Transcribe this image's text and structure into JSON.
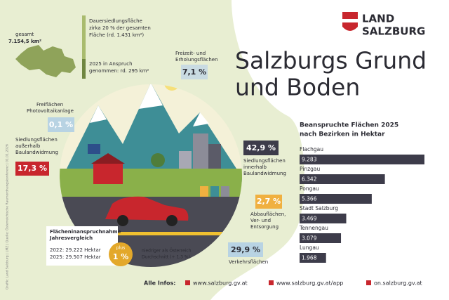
{
  "header": {
    "title_lines": [
      "Salzburgs Grund",
      "und Boden"
    ],
    "logo": [
      "LAND",
      "SALZBURG"
    ]
  },
  "overview": {
    "total_label": "gesamt",
    "total": "7.154,5 km²",
    "settlement": [
      "Dauersiedlungsfläche",
      "zirka 20 % der gesamten",
      "Fläche (rd. 1.431 km²)"
    ],
    "claimed": [
      "2025 in Anspruch",
      "genommen: rd. 295 km²"
    ]
  },
  "shares": [
    {
      "value": "7,1 %",
      "label": [
        "Freizeit- und",
        "Erholungsflächen"
      ]
    },
    {
      "value": "0,1 %",
      "label": [
        "Freiflächen",
        "Photovoltaikanlage"
      ]
    },
    {
      "value": "17,3 %",
      "label": [
        "Siedlungsflächen",
        "außerhalb",
        "Baulandwidmung"
      ]
    },
    {
      "value": "42,9 %",
      "label": [
        "Siedlungsflächen",
        "innerhalb",
        "Baulandwidmung"
      ]
    },
    {
      "value": "2,7 %",
      "label": [
        "Abbauflächen,",
        "Ver- und",
        "Entsorgung"
      ]
    },
    {
      "value": "29,9 %",
      "label": [
        "Verkehrsflächen"
      ]
    }
  ],
  "comparison": {
    "title": [
      "Flächeninanspruchnahme",
      "Jahresvergleich"
    ],
    "rows": [
      "2022: 29.222 Hektar",
      "2025: 29.507 Hektar"
    ],
    "badge_top": "plus",
    "badge": "1 %",
    "note": [
      "niedriger als Österreich",
      "Durchschnitt (+ 1,3 %)"
    ]
  },
  "footer": {
    "label": "Alle Infos:",
    "links": [
      "www.salzburg.gv.at",
      "www.salzburg.gv.at/app",
      "on.salzburg.gv.at"
    ]
  },
  "credit": "Grafik: Land Salzburg | LMZ | Quelle: Österreichische Raumordnungskonferenz | 01.01.2026",
  "chart_data": {
    "type": "bar",
    "orientation": "horizontal",
    "title": [
      "Beanspruchte Flächen 2025",
      "nach Bezirken in Hektar"
    ],
    "categories": [
      "Flachgau",
      "Pinzgau",
      "Pongau",
      "Stadt Salzburg",
      "Tennengau",
      "Lungau"
    ],
    "values": [
      9283,
      6342,
      5366,
      3469,
      3079,
      1968
    ],
    "value_labels": [
      "9.283",
      "6.342",
      "5.366",
      "3.469",
      "3.079",
      "1.968"
    ],
    "color": "#3d3c4a"
  }
}
